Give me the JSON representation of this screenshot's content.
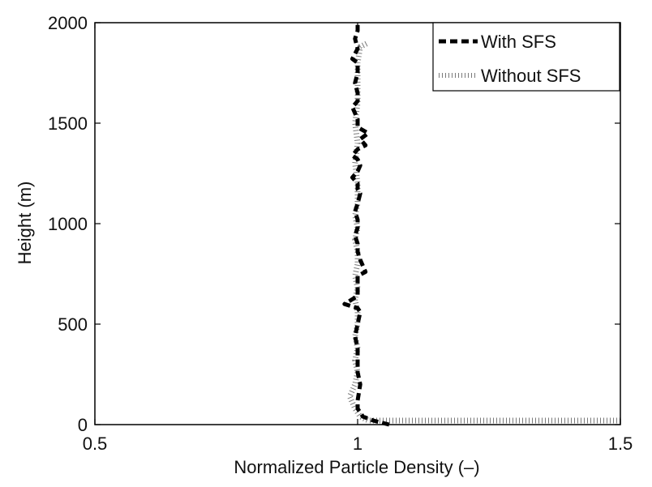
{
  "chart_data": {
    "type": "line",
    "xlabel": "Normalized Particle Density (–)",
    "ylabel": "Height (m)",
    "xlim": [
      0.5,
      1.5
    ],
    "ylim": [
      0,
      2000
    ],
    "xticks": [
      0.5,
      1,
      1.5
    ],
    "xtick_labels": [
      "0.5",
      "1",
      "1.5"
    ],
    "yticks": [
      0,
      500,
      1000,
      1500,
      2000
    ],
    "ytick_labels": [
      "0",
      "500",
      "1000",
      "1500",
      "2000"
    ],
    "grid": false,
    "legend_position": "top-right",
    "series": [
      {
        "name": "With SFS",
        "style": "dashed",
        "color": "#000000",
        "x": [
          1.06,
          1.03,
          1.01,
          1.0,
          1.0,
          1.005,
          1.0,
          1.0,
          1.0,
          0.995,
          1.0,
          1.005,
          1.0,
          0.975,
          1.0,
          1.0,
          1.0,
          1.015,
          1.005,
          1.0,
          1.0,
          0.995,
          1.0,
          1.0,
          0.995,
          1.0,
          1.005,
          1.0,
          1.0,
          0.99,
          1.0,
          1.005,
          1.0,
          0.99,
          1.0,
          1.015,
          1.005,
          1.02,
          1.0,
          1.0,
          0.99,
          1.0,
          1.0,
          0.995,
          1.0,
          1.0,
          0.99,
          1.0,
          0.995,
          1.0,
          1.0
        ],
        "y": [
          0,
          20,
          40,
          80,
          120,
          200,
          260,
          320,
          380,
          440,
          500,
          560,
          580,
          600,
          640,
          700,
          740,
          760,
          820,
          860,
          900,
          940,
          980,
          1020,
          1060,
          1100,
          1150,
          1170,
          1200,
          1230,
          1260,
          1290,
          1320,
          1340,
          1370,
          1390,
          1420,
          1450,
          1480,
          1520,
          1580,
          1610,
          1650,
          1700,
          1750,
          1800,
          1820,
          1870,
          1920,
          1960,
          2000
        ]
      },
      {
        "name": "Without SFS",
        "style": "dotted",
        "color": "#7a7a7a",
        "x": [
          1.5,
          1.25,
          1.1,
          1.05,
          1.02,
          1.005,
          0.995,
          0.985,
          0.995,
          1.0,
          0.995,
          1.0,
          0.995,
          1.0,
          1.0,
          0.995,
          1.0,
          0.995,
          1.0,
          1.0,
          0.995,
          1.0,
          0.995,
          1.0,
          1.0,
          0.995,
          1.0,
          0.995,
          1.0,
          1.0,
          1.0,
          1.005,
          1.02
        ],
        "y": [
          20,
          20,
          20,
          20,
          20,
          40,
          80,
          140,
          200,
          260,
          320,
          380,
          440,
          500,
          560,
          620,
          680,
          740,
          800,
          860,
          920,
          980,
          1040,
          1100,
          1200,
          1300,
          1400,
          1500,
          1600,
          1700,
          1800,
          1880,
          1900
        ]
      }
    ]
  }
}
